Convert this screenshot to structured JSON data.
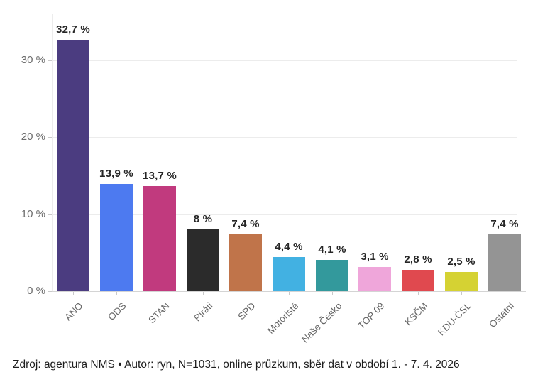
{
  "chart_data": {
    "type": "bar",
    "title": "",
    "xlabel": "",
    "ylabel": "",
    "categories": [
      "ANO",
      "ODS",
      "STAN",
      "Piráti",
      "SPD",
      "Motoristé",
      "Naše Česko",
      "TOP 09",
      "KSČM",
      "KDU-ČSL",
      "Ostatní"
    ],
    "values": [
      32.7,
      13.9,
      13.7,
      8,
      7.4,
      4.4,
      4.1,
      3.1,
      2.8,
      2.5,
      7.4
    ],
    "value_labels": [
      "32,7 %",
      "13,9 %",
      "13,7 %",
      "8 %",
      "7,4 %",
      "4,4 %",
      "4,1 %",
      "3,1 %",
      "2,8 %",
      "2,5 %",
      "7,4 %"
    ],
    "bar_colors": [
      "#4b3c80",
      "#4d7af0",
      "#c13a7e",
      "#2b2b2b",
      "#c0744a",
      "#42b1e2",
      "#33999c",
      "#efa6da",
      "#e0494f",
      "#d5d233",
      "#949494"
    ],
    "ylim": [
      0,
      33
    ],
    "yticks": [
      0,
      10,
      20,
      30
    ],
    "ytick_labels": [
      "0 %",
      "10 %",
      "20 %",
      "30 %"
    ],
    "grid": true,
    "legend": false
  },
  "footer": {
    "text_before_link": "Zdroj: ",
    "link_text": "agentura NMS",
    "text_after_link": " • Autor: ryn, N=1031, online průzkum, sběr dat v období 1. - 7. 4. 2026"
  }
}
